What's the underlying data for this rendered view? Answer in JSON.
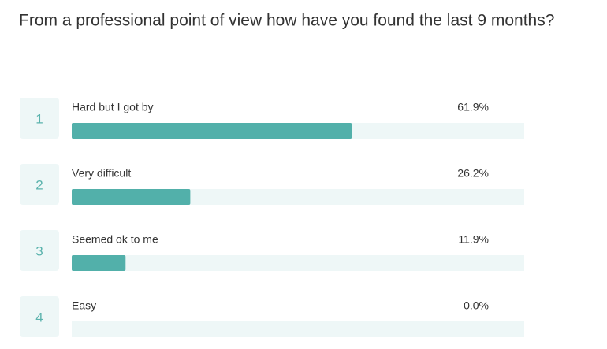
{
  "chart_data": {
    "type": "bar",
    "orientation": "horizontal",
    "title": "From a professional point of view how have you found the last 9 months?",
    "ranks": [
      1,
      2,
      3,
      4
    ],
    "categories": [
      "Hard but I got by",
      "Very difficult",
      "Seemed ok to me",
      "Easy"
    ],
    "values": [
      61.9,
      26.2,
      11.9,
      0.0
    ],
    "value_labels": [
      "61.9%",
      "26.2%",
      "11.9%",
      "0.0%"
    ],
    "xlim": [
      0,
      100
    ],
    "color": "#52b0aa"
  }
}
